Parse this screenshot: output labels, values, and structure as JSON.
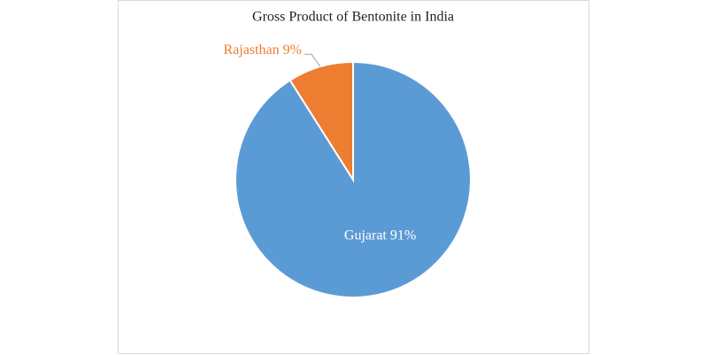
{
  "chart_data": {
    "type": "pie",
    "title": "Gross Product of Bentonite in India",
    "categories": [
      "Gujarat",
      "Rajasthan"
    ],
    "values": [
      91,
      9
    ],
    "value_labels": [
      "Gujarat 91%",
      "Rajasthan 9%"
    ],
    "colors": [
      "#5b9bd5",
      "#ed7d31"
    ]
  }
}
